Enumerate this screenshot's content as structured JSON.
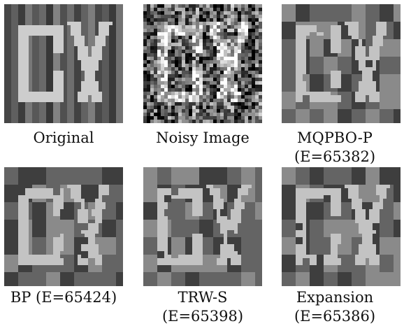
{
  "colors": {
    "letter": "#cfcfcf",
    "dark": "#3d3d3d",
    "mid": "#6e6e6e",
    "light": "#9a9a9a"
  },
  "panels": [
    {
      "id": "original",
      "caption_lines": [
        "Original"
      ]
    },
    {
      "id": "noisy",
      "caption_lines": [
        "Noisy Image"
      ]
    },
    {
      "id": "mqpbo",
      "caption_lines": [
        "MQPBO-P",
        "(E=65382)"
      ]
    },
    {
      "id": "bp",
      "caption_lines": [
        "BP (E=65424)"
      ]
    },
    {
      "id": "trws",
      "caption_lines": [
        "TRW-S",
        "(E=65398)"
      ]
    },
    {
      "id": "expansion",
      "caption_lines": [
        "Expansion",
        "(E=65386)"
      ]
    }
  ]
}
